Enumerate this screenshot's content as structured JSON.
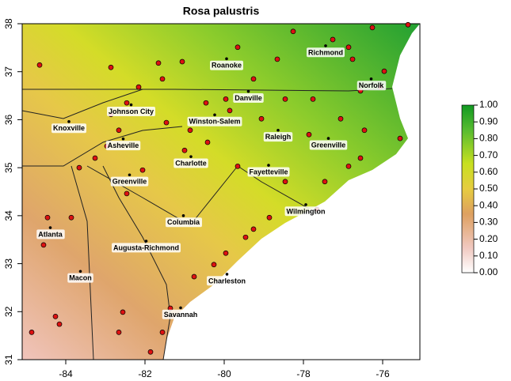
{
  "chart_data": {
    "type": "scatter",
    "title": "Rosa palustris",
    "xlim": [
      -85.1,
      -75.06
    ],
    "ylim": [
      31,
      38
    ],
    "xticks": [
      -84,
      -82,
      -80,
      -78,
      -76
    ],
    "yticks": [
      31,
      32,
      33,
      34,
      35,
      36,
      37,
      38
    ],
    "point_color": "#dd1111",
    "x": [
      -84.66,
      -82.86,
      -81.66,
      -81.06,
      -81.56,
      -82.16,
      -82.46,
      -82.86,
      -82.66,
      -82.96,
      -83.26,
      -83.66,
      -81.46,
      -80.86,
      -80.46,
      -79.86,
      -79.06,
      -78.46,
      -77.76,
      -77.06,
      -76.56,
      -76.06,
      -75.96,
      -76.76,
      -76.86,
      -77.26,
      -78.26,
      -78.66,
      -79.66,
      -79.26,
      -82.06,
      -81.0,
      -79.66,
      -78.46,
      -77.46,
      -76.86,
      -76.56,
      -77.66,
      -78.86,
      -79.26,
      -79.46,
      -79.96,
      -80.26,
      -80.76,
      -81.36,
      -81.56,
      -81.86,
      -82.66,
      -82.56,
      -84.26,
      -84.16,
      -84.86,
      -84.46,
      -84.56,
      -83.86,
      -82.46,
      -75.56,
      -75.36,
      -76.26,
      -76.46,
      -77.86,
      -79.96,
      -80.42
    ],
    "y": [
      37.14,
      37.09,
      37.18,
      37.21,
      36.85,
      36.68,
      36.35,
      36.11,
      35.78,
      35.45,
      35.2,
      35.0,
      35.94,
      35.78,
      36.35,
      36.19,
      36.02,
      36.43,
      36.43,
      36.02,
      36.6,
      36.68,
      37.01,
      37.26,
      37.51,
      37.67,
      37.84,
      37.26,
      37.51,
      36.85,
      34.95,
      35.36,
      35.03,
      34.71,
      34.71,
      35.03,
      35.2,
      34.13,
      33.96,
      33.72,
      33.55,
      33.22,
      32.98,
      32.73,
      32.07,
      31.57,
      31.16,
      31.57,
      31.99,
      31.9,
      31.74,
      31.57,
      33.96,
      33.39,
      33.96,
      34.46,
      35.61,
      37.98,
      37.92,
      35.78,
      35.69,
      36.43,
      35.53
    ],
    "cities": [
      {
        "name": "Richmond",
        "lon": -77.44,
        "lat": 37.54
      },
      {
        "name": "Roanoke",
        "lon": -79.94,
        "lat": 37.27
      },
      {
        "name": "Norfolk",
        "lon": -76.29,
        "lat": 36.85
      },
      {
        "name": "Danville",
        "lon": -79.39,
        "lat": 36.59
      },
      {
        "name": "Johnson City",
        "lon": -82.35,
        "lat": 36.31
      },
      {
        "name": "Knoxville",
        "lon": -83.92,
        "lat": 35.96
      },
      {
        "name": "Winston-Salem",
        "lon": -80.24,
        "lat": 36.1
      },
      {
        "name": "Raleigh",
        "lon": -78.64,
        "lat": 35.78
      },
      {
        "name": "Greenville",
        "lon": -77.37,
        "lat": 35.61
      },
      {
        "name": "Asheville",
        "lon": -82.55,
        "lat": 35.6
      },
      {
        "name": "Charlotte",
        "lon": -80.84,
        "lat": 35.23
      },
      {
        "name": "Fayetteville",
        "lon": -78.88,
        "lat": 35.05
      },
      {
        "name": "Greenville",
        "lon": -82.39,
        "lat": 34.85
      },
      {
        "name": "Wilmington",
        "lon": -77.94,
        "lat": 34.23
      },
      {
        "name": "Columbia",
        "lon": -81.03,
        "lat": 34.0
      },
      {
        "name": "Atlanta",
        "lon": -84.39,
        "lat": 33.75
      },
      {
        "name": "Augusta-Richmond",
        "lon": -81.97,
        "lat": 33.47
      },
      {
        "name": "Macon",
        "lon": -83.63,
        "lat": 32.84
      },
      {
        "name": "Charleston",
        "lon": -79.93,
        "lat": 32.78
      },
      {
        "name": "Savannah",
        "lon": -81.1,
        "lat": 32.08
      }
    ],
    "colorbar": {
      "lim": [
        0,
        1
      ],
      "ticks": [
        {
          "value": 0,
          "label": "0.00"
        },
        {
          "value": 0.1,
          "label": "0.10"
        },
        {
          "value": 0.2,
          "label": "0.20"
        },
        {
          "value": 0.3,
          "label": "0.30"
        },
        {
          "value": 0.4,
          "label": "0.40"
        },
        {
          "value": 0.5,
          "label": "0.50"
        },
        {
          "value": 0.6,
          "label": "0.60"
        },
        {
          "value": 0.7,
          "label": "0.70"
        },
        {
          "value": 0.8,
          "label": "0.80"
        },
        {
          "value": 0.9,
          "label": "0.90"
        },
        {
          "value": 1,
          "label": "1.00"
        }
      ]
    }
  }
}
